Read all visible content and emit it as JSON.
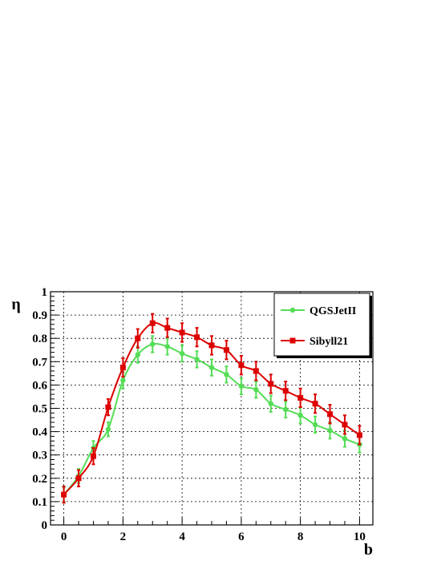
{
  "chart_data": {
    "type": "line",
    "xlabel": "b",
    "ylabel": "η",
    "xlim": [
      -0.45,
      10.45
    ],
    "ylim": [
      0,
      1
    ],
    "grid": true,
    "legend_position": "top-right",
    "x_ticks": [
      "0",
      "2",
      "4",
      "6",
      "8",
      "10"
    ],
    "y_ticks": [
      "0",
      "0.1",
      "0.2",
      "0.3",
      "0.4",
      "0.5",
      "0.6",
      "0.7",
      "0.8",
      "0.9",
      "1"
    ],
    "x": [
      0,
      0.5,
      1,
      1.5,
      2,
      2.5,
      3,
      3.5,
      4,
      4.5,
      5,
      5.5,
      6,
      6.5,
      7,
      7.5,
      8,
      8.5,
      9,
      9.5,
      10
    ],
    "series": [
      {
        "name": "QGSJetII",
        "color": "#55dd55",
        "marker": "circle",
        "values": [
          0.13,
          0.21,
          0.33,
          0.41,
          0.62,
          0.73,
          0.775,
          0.765,
          0.735,
          0.71,
          0.675,
          0.645,
          0.595,
          0.58,
          0.52,
          0.495,
          0.47,
          0.43,
          0.405,
          0.37,
          0.345
        ],
        "errors": [
          0.03,
          0.03,
          0.03,
          0.03,
          0.035,
          0.035,
          0.035,
          0.035,
          0.035,
          0.035,
          0.035,
          0.035,
          0.035,
          0.035,
          0.035,
          0.035,
          0.035,
          0.035,
          0.035,
          0.035,
          0.035
        ]
      },
      {
        "name": "Sibyll21",
        "color": "#dd0000",
        "marker": "square",
        "values": [
          0.13,
          0.2,
          0.295,
          0.505,
          0.675,
          0.8,
          0.865,
          0.845,
          0.825,
          0.805,
          0.77,
          0.75,
          0.685,
          0.66,
          0.605,
          0.575,
          0.545,
          0.52,
          0.475,
          0.43,
          0.385
        ],
        "errors": [
          0.035,
          0.035,
          0.035,
          0.035,
          0.04,
          0.04,
          0.04,
          0.04,
          0.04,
          0.04,
          0.04,
          0.04,
          0.04,
          0.04,
          0.04,
          0.04,
          0.04,
          0.04,
          0.04,
          0.04,
          0.04
        ]
      }
    ]
  }
}
